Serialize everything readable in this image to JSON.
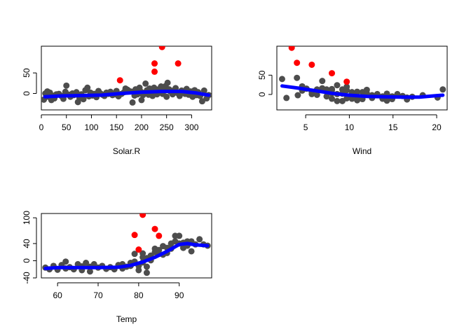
{
  "colors": {
    "points": "#4d4d4d",
    "outliers": "#ff0000",
    "smooth": "#0000ff",
    "background": "#ffffff",
    "axis": "#000000"
  },
  "chart_data": [
    {
      "type": "scatter",
      "title": "",
      "xlabel": "Solar.R",
      "ylabel": "",
      "xlim": [
        0,
        340
      ],
      "ylim": [
        -40,
        115
      ],
      "xticks": [
        0,
        50,
        100,
        150,
        200,
        250,
        300
      ],
      "yticks": [
        0,
        50
      ],
      "grid": false,
      "series": [
        {
          "values": [
            [
              5,
              -15
            ],
            [
              8,
              0
            ],
            [
              10,
              -4
            ],
            [
              12,
              5
            ],
            [
              14,
              -8
            ],
            [
              17,
              2
            ],
            [
              20,
              -16
            ],
            [
              22,
              -5
            ],
            [
              26,
              -12
            ],
            [
              30,
              -2
            ],
            [
              35,
              -1
            ],
            [
              40,
              -6
            ],
            [
              44,
              -13
            ],
            [
              48,
              4
            ],
            [
              50,
              19
            ],
            [
              55,
              -3
            ],
            [
              58,
              -8
            ],
            [
              62,
              0
            ],
            [
              65,
              -4
            ],
            [
              70,
              3
            ],
            [
              73,
              -21
            ],
            [
              76,
              -10
            ],
            [
              80,
              -2
            ],
            [
              84,
              -14
            ],
            [
              88,
              8
            ],
            [
              92,
              14
            ],
            [
              95,
              -7
            ],
            [
              98,
              2
            ],
            [
              102,
              -5
            ],
            [
              106,
              -1
            ],
            [
              110,
              -9
            ],
            [
              114,
              6
            ],
            [
              118,
              0
            ],
            [
              122,
              -3
            ],
            [
              126,
              -6
            ],
            [
              130,
              2
            ],
            [
              134,
              -1
            ],
            [
              138,
              4
            ],
            [
              142,
              -4
            ],
            [
              146,
              -2
            ],
            [
              150,
              6
            ],
            [
              154,
              -7
            ],
            [
              160,
              -1
            ],
            [
              165,
              3
            ],
            [
              168,
              12
            ],
            [
              172,
              9
            ],
            [
              178,
              5
            ],
            [
              182,
              -22
            ],
            [
              186,
              -5
            ],
            [
              188,
              10
            ],
            [
              192,
              -2
            ],
            [
              196,
              14
            ],
            [
              198,
              5
            ],
            [
              200,
              -16
            ],
            [
              203,
              -4
            ],
            [
              206,
              2
            ],
            [
              208,
              24
            ],
            [
              211,
              8
            ],
            [
              214,
              -3
            ],
            [
              216,
              12
            ],
            [
              219,
              5
            ],
            [
              222,
              -6
            ],
            [
              225,
              14
            ],
            [
              228,
              8
            ],
            [
              231,
              -2
            ],
            [
              234,
              10
            ],
            [
              236,
              4
            ],
            [
              239,
              17
            ],
            [
              242,
              -1
            ],
            [
              245,
              6
            ],
            [
              248,
              18
            ],
            [
              250,
              -8
            ],
            [
              252,
              26
            ],
            [
              255,
              10
            ],
            [
              258,
              4
            ],
            [
              262,
              -2
            ],
            [
              265,
              8
            ],
            [
              268,
              13
            ],
            [
              272,
              1
            ],
            [
              276,
              -6
            ],
            [
              280,
              7
            ],
            [
              284,
              3
            ],
            [
              287,
              -1
            ],
            [
              290,
              11
            ],
            [
              294,
              -3
            ],
            [
              298,
              5
            ],
            [
              302,
              -8
            ],
            [
              306,
              8
            ],
            [
              310,
              -4
            ],
            [
              313,
              3
            ],
            [
              317,
              -6
            ],
            [
              321,
              -19
            ],
            [
              325,
              7
            ],
            [
              330,
              -12
            ],
            [
              334,
              -4
            ]
          ]
        },
        {
          "values": [
            [
              157,
              32
            ],
            [
              226,
              53
            ],
            [
              226,
              73
            ],
            [
              241,
              113
            ],
            [
              273,
              73
            ]
          ]
        },
        {
          "values": [
            [
              7,
              -8
            ],
            [
              40,
              -6
            ],
            [
              80,
              -5
            ],
            [
              120,
              -4
            ],
            [
              160,
              0
            ],
            [
              200,
              3
            ],
            [
              240,
              5
            ],
            [
              280,
              5
            ],
            [
              310,
              1
            ],
            [
              334,
              -4
            ]
          ]
        }
      ]
    },
    {
      "type": "scatter",
      "title": "",
      "xlabel": "Wind",
      "ylabel": "",
      "xlim": [
        1.7,
        21.2
      ],
      "ylim": [
        -40,
        125
      ],
      "xticks": [
        5,
        10,
        15,
        20
      ],
      "yticks": [
        0,
        50
      ],
      "grid": false,
      "series": [
        {
          "values": [
            [
              2.3,
              40
            ],
            [
              2.8,
              -9
            ],
            [
              4.0,
              43
            ],
            [
              4.1,
              -2
            ],
            [
              4.6,
              21
            ],
            [
              4.6,
              10
            ],
            [
              5.1,
              15
            ],
            [
              5.7,
              1
            ],
            [
              5.7,
              7
            ],
            [
              6.3,
              13
            ],
            [
              6.3,
              -1
            ],
            [
              6.9,
              35
            ],
            [
              6.9,
              16
            ],
            [
              7.4,
              7
            ],
            [
              7.4,
              13
            ],
            [
              7.4,
              -5
            ],
            [
              8.0,
              14
            ],
            [
              8.0,
              3
            ],
            [
              8.0,
              -11
            ],
            [
              8.0,
              11
            ],
            [
              8.6,
              24
            ],
            [
              8.6,
              -17
            ],
            [
              8.6,
              1
            ],
            [
              9.2,
              13
            ],
            [
              9.2,
              2
            ],
            [
              9.2,
              -17
            ],
            [
              9.7,
              11
            ],
            [
              9.7,
              -10
            ],
            [
              9.7,
              20
            ],
            [
              10.3,
              6
            ],
            [
              10.3,
              -11
            ],
            [
              10.3,
              2
            ],
            [
              10.9,
              -4
            ],
            [
              10.9,
              7
            ],
            [
              10.9,
              -15
            ],
            [
              11.5,
              6
            ],
            [
              11.5,
              -4
            ],
            [
              11.5,
              -12
            ],
            [
              12.0,
              3
            ],
            [
              12.0,
              12
            ],
            [
              12.0,
              -1
            ],
            [
              12.6,
              -9
            ],
            [
              12.6,
              -2
            ],
            [
              13.2,
              1
            ],
            [
              13.8,
              -11
            ],
            [
              13.8,
              -5
            ],
            [
              14.3,
              2
            ],
            [
              14.3,
              -16
            ],
            [
              14.9,
              -5
            ],
            [
              14.9,
              -12
            ],
            [
              15.5,
              1
            ],
            [
              16.1,
              -4
            ],
            [
              16.6,
              -13
            ],
            [
              16.6,
              -8
            ],
            [
              17.2,
              -6
            ],
            [
              18.4,
              -2
            ],
            [
              20.1,
              -8
            ],
            [
              20.7,
              13
            ]
          ]
        },
        {
          "values": [
            [
              3.4,
              121
            ],
            [
              4.0,
              82
            ],
            [
              5.7,
              77
            ],
            [
              8.0,
              55
            ],
            [
              9.7,
              33
            ]
          ]
        },
        {
          "values": [
            [
              2.3,
              22
            ],
            [
              4,
              17
            ],
            [
              6,
              10
            ],
            [
              8,
              3
            ],
            [
              10,
              -2
            ],
            [
              12,
              -5
            ],
            [
              14,
              -6
            ],
            [
              16,
              -7
            ],
            [
              18,
              -7
            ],
            [
              20,
              -3
            ],
            [
              20.7,
              -2
            ]
          ]
        }
      ]
    },
    {
      "type": "scatter",
      "title": "",
      "xlabel": "Temp",
      "ylabel": "",
      "xlim": [
        56,
        98
      ],
      "ylim": [
        -40,
        110
      ],
      "xticks": [
        60,
        70,
        80,
        90
      ],
      "yticks": [
        -40,
        0,
        40,
        100
      ],
      "grid": false,
      "series": [
        {
          "values": [
            [
              57,
              -16
            ],
            [
              58,
              -20
            ],
            [
              59,
              -12
            ],
            [
              60,
              -21
            ],
            [
              61,
              -10
            ],
            [
              62,
              -18
            ],
            [
              62,
              -2
            ],
            [
              63,
              -15
            ],
            [
              64,
              -20
            ],
            [
              65,
              -8
            ],
            [
              66,
              -13
            ],
            [
              66,
              -22
            ],
            [
              67,
              -5
            ],
            [
              68,
              -14
            ],
            [
              68,
              -25
            ],
            [
              69,
              -8
            ],
            [
              70,
              -16
            ],
            [
              71,
              -12
            ],
            [
              72,
              -19
            ],
            [
              73,
              -15
            ],
            [
              74,
              -20
            ],
            [
              75,
              -10
            ],
            [
              76,
              -18
            ],
            [
              76,
              -8
            ],
            [
              77,
              -14
            ],
            [
              78,
              -5
            ],
            [
              78,
              -12
            ],
            [
              79,
              -2
            ],
            [
              79,
              16
            ],
            [
              80,
              -12
            ],
            [
              80,
              -22
            ],
            [
              81,
              -4
            ],
            [
              81,
              8
            ],
            [
              81,
              17
            ],
            [
              82,
              -14
            ],
            [
              82,
              -28
            ],
            [
              82,
              6
            ],
            [
              83,
              12
            ],
            [
              83,
              1
            ],
            [
              84,
              20
            ],
            [
              84,
              28
            ],
            [
              85,
              25
            ],
            [
              85,
              16
            ],
            [
              86,
              14
            ],
            [
              86,
              34
            ],
            [
              87,
              30
            ],
            [
              87,
              18
            ],
            [
              88,
              40
            ],
            [
              88,
              28
            ],
            [
              89,
              45
            ],
            [
              89,
              58
            ],
            [
              90,
              40
            ],
            [
              90,
              58
            ],
            [
              91,
              42
            ],
            [
              91,
              30
            ],
            [
              92,
              45
            ],
            [
              92,
              35
            ],
            [
              93,
              22
            ],
            [
              93,
              45
            ],
            [
              94,
              38
            ],
            [
              95,
              50
            ],
            [
              96,
              38
            ],
            [
              97,
              35
            ]
          ]
        },
        {
          "values": [
            [
              79,
              60
            ],
            [
              80,
              26
            ],
            [
              81,
              107
            ],
            [
              84,
              74
            ],
            [
              85,
              58
            ]
          ]
        },
        {
          "values": [
            [
              57,
              -18
            ],
            [
              60,
              -16
            ],
            [
              65,
              -16
            ],
            [
              70,
              -16
            ],
            [
              75,
              -15
            ],
            [
              78,
              -11
            ],
            [
              81,
              -3
            ],
            [
              84,
              8
            ],
            [
              87,
              22
            ],
            [
              90,
              38
            ],
            [
              92,
              40
            ],
            [
              94,
              37
            ],
            [
              97,
              35
            ]
          ]
        }
      ]
    }
  ]
}
